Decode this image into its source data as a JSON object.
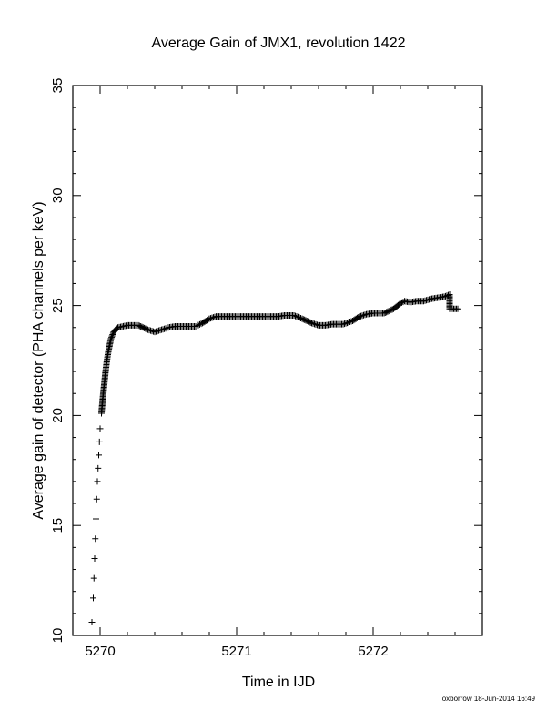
{
  "chart_data": {
    "type": "scatter",
    "title": "Average Gain of JMX1, revolution 1422",
    "xlabel": "Time in IJD",
    "ylabel": "Average gain of detector (PHA channels per keV)",
    "xlim": [
      5269.8,
      5272.8
    ],
    "ylim": [
      10,
      35
    ],
    "x_ticks": [
      5270,
      5271,
      5272
    ],
    "y_ticks": [
      10,
      15,
      20,
      25,
      30,
      35
    ],
    "grid": false,
    "marker": "+",
    "marker_color": "#000000",
    "series": [
      {
        "points": [
          [
            5269.94,
            10.6
          ],
          [
            5269.95,
            11.7
          ],
          [
            5269.955,
            12.6
          ],
          [
            5269.96,
            13.5
          ],
          [
            5269.965,
            14.4
          ],
          [
            5269.97,
            15.3
          ],
          [
            5269.975,
            16.2
          ],
          [
            5269.98,
            17.0
          ],
          [
            5269.985,
            17.6
          ],
          [
            5269.99,
            18.2
          ],
          [
            5269.995,
            18.8
          ],
          [
            5270.0,
            19.4
          ],
          [
            5270.01,
            20.1
          ],
          [
            5270.02,
            20.8
          ],
          [
            5270.03,
            21.4
          ],
          [
            5270.04,
            22.0
          ],
          [
            5270.05,
            22.5
          ],
          [
            5270.06,
            22.9
          ],
          [
            5270.07,
            23.2
          ],
          [
            5270.08,
            23.5
          ],
          [
            5270.1,
            23.8
          ],
          [
            5270.13,
            24.0
          ],
          [
            5270.2,
            24.1
          ],
          [
            5270.28,
            24.1
          ],
          [
            5270.35,
            23.9
          ],
          [
            5270.4,
            23.8
          ],
          [
            5270.45,
            23.9
          ],
          [
            5270.5,
            24.0
          ],
          [
            5270.55,
            24.05
          ],
          [
            5270.6,
            24.05
          ],
          [
            5270.7,
            24.05
          ],
          [
            5270.75,
            24.2
          ],
          [
            5270.8,
            24.4
          ],
          [
            5270.85,
            24.5
          ],
          [
            5270.9,
            24.5
          ],
          [
            5271.0,
            24.5
          ],
          [
            5271.1,
            24.5
          ],
          [
            5271.2,
            24.5
          ],
          [
            5271.3,
            24.5
          ],
          [
            5271.35,
            24.55
          ],
          [
            5271.42,
            24.55
          ],
          [
            5271.48,
            24.4
          ],
          [
            5271.55,
            24.2
          ],
          [
            5271.6,
            24.1
          ],
          [
            5271.65,
            24.1
          ],
          [
            5271.7,
            24.15
          ],
          [
            5271.78,
            24.15
          ],
          [
            5271.85,
            24.3
          ],
          [
            5271.9,
            24.5
          ],
          [
            5271.95,
            24.6
          ],
          [
            5272.0,
            24.65
          ],
          [
            5272.08,
            24.65
          ],
          [
            5272.15,
            24.85
          ],
          [
            5272.2,
            25.1
          ],
          [
            5272.23,
            25.2
          ],
          [
            5272.27,
            25.15
          ],
          [
            5272.32,
            25.2
          ],
          [
            5272.37,
            25.2
          ],
          [
            5272.42,
            25.3
          ],
          [
            5272.47,
            25.35
          ],
          [
            5272.52,
            25.4
          ],
          [
            5272.56,
            25.5
          ],
          [
            5272.56,
            24.85
          ],
          [
            5272.58,
            24.85
          ],
          [
            5272.6,
            24.85
          ],
          [
            5272.62,
            24.85
          ]
        ]
      }
    ]
  },
  "footer": {
    "credit": "oxborrow 18-Jun-2014 16:49"
  }
}
